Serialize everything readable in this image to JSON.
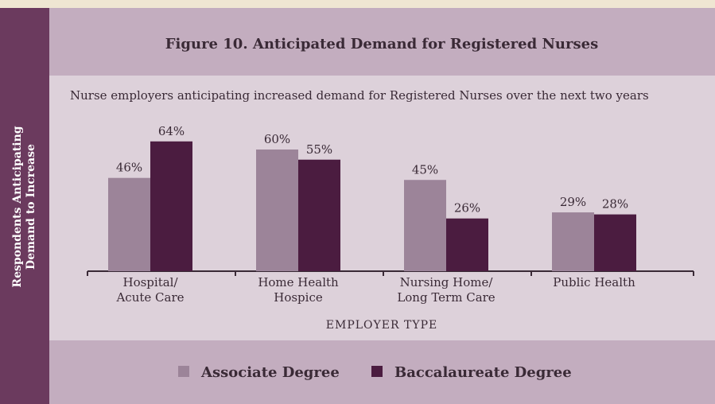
{
  "chart_data": {
    "type": "bar",
    "title": "Figure 10. Anticipated Demand for Registered Nurses",
    "subtitle": "Nurse employers anticipating increased demand for Registered Nurses over the next two years",
    "y_label": "Respondents Anticipating\nDemand to Increase",
    "x_label": "EMPLOYER TYPE",
    "categories": [
      "Hospital/\nAcute Care",
      "Home Health\nHospice",
      "Nursing Home/\nLong Term Care",
      "Public Health"
    ],
    "series": [
      {
        "name": "Associate Degree",
        "color": "#9c8499",
        "values": [
          46,
          60,
          45,
          29
        ],
        "value_labels": [
          "46%",
          "60%",
          "45%",
          "29%"
        ]
      },
      {
        "name": "Baccalaureate Degree",
        "color": "#4b1c40",
        "values": [
          64,
          55,
          26,
          28
        ],
        "value_labels": [
          "64%",
          "55%",
          "26%",
          "28%"
        ]
      }
    ]
  }
}
